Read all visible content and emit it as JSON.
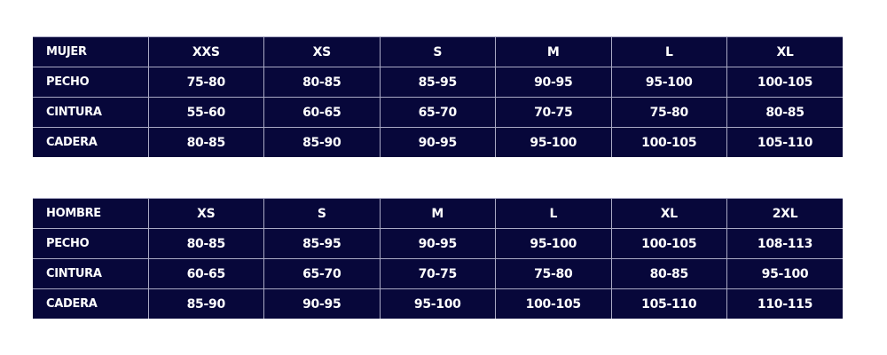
{
  "tables": [
    {
      "title": "MUJER",
      "sizes": [
        "XXS",
        "XS",
        "S",
        "M",
        "L",
        "XL"
      ],
      "rows": [
        {
          "label": "PECHO",
          "values": [
            "75-80",
            "80-85",
            "85-95",
            "90-95",
            "95-100",
            "100-105"
          ]
        },
        {
          "label": "CINTURA",
          "values": [
            "55-60",
            "60-65",
            "65-70",
            "70-75",
            "75-80",
            "80-85"
          ]
        },
        {
          "label": "CADERA",
          "values": [
            "80-85",
            "85-90",
            "90-95",
            "95-100",
            "100-105",
            "105-110"
          ]
        }
      ]
    },
    {
      "title": "HOMBRE",
      "sizes": [
        "XS",
        "S",
        "M",
        "L",
        "XL",
        "2XL"
      ],
      "rows": [
        {
          "label": "PECHO",
          "values": [
            "80-85",
            "85-95",
            "90-95",
            "95-100",
            "100-105",
            "108-113"
          ]
        },
        {
          "label": "CINTURA",
          "values": [
            "60-65",
            "65-70",
            "70-75",
            "75-80",
            "80-85",
            "95-100"
          ]
        },
        {
          "label": "CADERA",
          "values": [
            "85-90",
            "90-95",
            "95-100",
            "100-105",
            "105-110",
            "110-115"
          ]
        }
      ]
    }
  ],
  "colors": {
    "background": "#07073a",
    "text": "#ffffff",
    "border": "#a9a9c4"
  }
}
